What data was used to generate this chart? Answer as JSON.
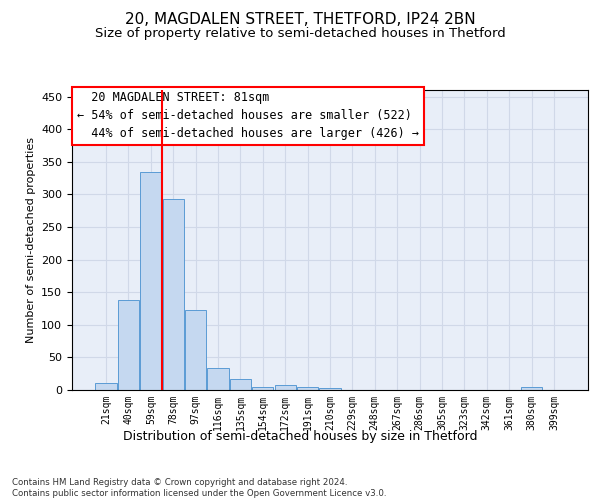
{
  "title_line1": "20, MAGDALEN STREET, THETFORD, IP24 2BN",
  "title_line2": "Size of property relative to semi-detached houses in Thetford",
  "xlabel": "Distribution of semi-detached houses by size in Thetford",
  "ylabel": "Number of semi-detached properties",
  "footnote": "Contains HM Land Registry data © Crown copyright and database right 2024.\nContains public sector information licensed under the Open Government Licence v3.0.",
  "categories": [
    "21sqm",
    "40sqm",
    "59sqm",
    "78sqm",
    "97sqm",
    "116sqm",
    "135sqm",
    "154sqm",
    "172sqm",
    "191sqm",
    "210sqm",
    "229sqm",
    "248sqm",
    "267sqm",
    "286sqm",
    "305sqm",
    "323sqm",
    "342sqm",
    "361sqm",
    "380sqm",
    "399sqm"
  ],
  "values": [
    10,
    138,
    335,
    293,
    122,
    33,
    17,
    5,
    7,
    5,
    3,
    0,
    0,
    0,
    0,
    0,
    0,
    0,
    0,
    4,
    0
  ],
  "bar_color": "#c5d8f0",
  "bar_edge_color": "#5b9bd5",
  "vline_color": "red",
  "vline_position": 2.5,
  "annotation_box_text": "  20 MAGDALEN STREET: 81sqm\n← 54% of semi-detached houses are smaller (522)\n  44% of semi-detached houses are larger (426) →",
  "annotation_fontsize": 8.5,
  "ylim": [
    0,
    460
  ],
  "yticks": [
    0,
    50,
    100,
    150,
    200,
    250,
    300,
    350,
    400,
    450
  ],
  "grid_color": "#d0d8e8",
  "bg_color": "#e8eef8",
  "title1_fontsize": 11,
  "title2_fontsize": 9.5,
  "xlabel_fontsize": 9,
  "ylabel_fontsize": 8
}
